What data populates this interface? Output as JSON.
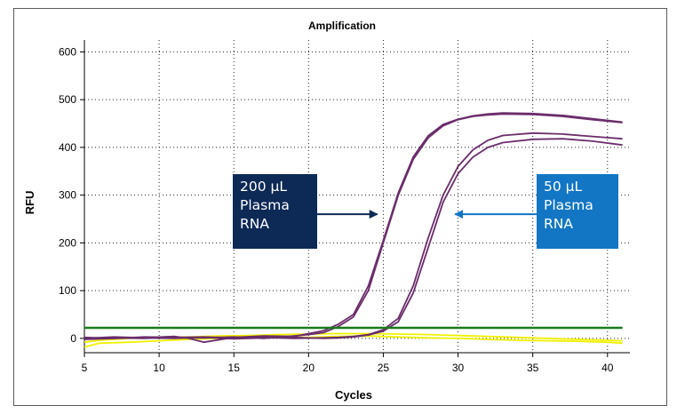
{
  "chart_data": {
    "type": "line",
    "title": "Amplification",
    "xlabel": "Cycles",
    "ylabel": "RFU",
    "xlim": [
      5,
      41.5
    ],
    "ylim": [
      -30,
      625
    ],
    "xticks": [
      5,
      10,
      15,
      20,
      25,
      30,
      35,
      40
    ],
    "yticks": [
      0,
      100,
      200,
      300,
      400,
      500,
      600
    ],
    "grid": true,
    "threshold": {
      "value": 22,
      "color": "#1a7a1a"
    },
    "series": [
      {
        "color": "#6b2d6b",
        "x": [
          5,
          7,
          9,
          11,
          13,
          15,
          17,
          19,
          20,
          21,
          22,
          23,
          24,
          25,
          26,
          27,
          28,
          29,
          30,
          31,
          32,
          33,
          35,
          37,
          39,
          41
        ],
        "y": [
          2,
          0,
          3,
          2,
          1,
          3,
          0,
          5,
          8,
          12,
          25,
          45,
          100,
          200,
          300,
          375,
          420,
          445,
          458,
          465,
          468,
          470,
          469,
          465,
          458,
          452
        ]
      },
      {
        "color": "#6b2d6b",
        "x": [
          5,
          7,
          9,
          11,
          12,
          13,
          15,
          17,
          19,
          20,
          21,
          22,
          23,
          24,
          25,
          26,
          27,
          28,
          29,
          30,
          31,
          32,
          33,
          35,
          37,
          39,
          41
        ],
        "y": [
          0,
          3,
          1,
          4,
          0,
          -8,
          2,
          5,
          4,
          10,
          16,
          30,
          50,
          110,
          205,
          305,
          380,
          424,
          448,
          459,
          466,
          470,
          472,
          471,
          467,
          460,
          453
        ]
      },
      {
        "color": "#6b2d6b",
        "x": [
          5,
          7,
          9,
          11,
          13,
          15,
          17,
          19,
          21,
          22,
          23,
          24,
          25,
          26,
          27,
          28,
          29,
          30,
          31,
          32,
          33,
          35,
          37,
          39,
          41
        ],
        "y": [
          0,
          1,
          0,
          2,
          3,
          1,
          2,
          0,
          1,
          2,
          4,
          8,
          18,
          42,
          110,
          210,
          300,
          360,
          395,
          415,
          425,
          430,
          428,
          423,
          418
        ]
      },
      {
        "color": "#6b2d6b",
        "x": [
          5,
          7,
          9,
          11,
          13,
          15,
          17,
          19,
          21,
          22,
          23,
          24,
          25,
          26,
          27,
          28,
          29,
          30,
          31,
          32,
          33,
          35,
          37,
          39,
          41
        ],
        "y": [
          -2,
          0,
          1,
          0,
          2,
          -1,
          1,
          2,
          0,
          1,
          3,
          7,
          15,
          35,
          95,
          190,
          285,
          345,
          380,
          400,
          410,
          417,
          418,
          413,
          405
        ]
      },
      {
        "color": "#f0f000",
        "x": [
          5,
          6,
          8,
          10,
          12,
          14,
          16,
          18,
          20,
          22,
          24,
          26,
          28,
          30,
          32,
          34,
          36,
          38,
          40,
          41
        ],
        "y": [
          -18,
          -10,
          -8,
          -5,
          -2,
          0,
          2,
          3,
          2,
          4,
          5,
          3,
          1,
          0,
          -2,
          -4,
          -5,
          -6,
          -8,
          -10
        ]
      },
      {
        "color": "#f0f000",
        "x": [
          5,
          6,
          8,
          10,
          12,
          14,
          16,
          18,
          20,
          22,
          24,
          26,
          28,
          30,
          32,
          34,
          36,
          38,
          40,
          41
        ],
        "y": [
          -8,
          -4,
          0,
          2,
          3,
          5,
          6,
          8,
          9,
          10,
          10,
          9,
          8,
          6,
          4,
          2,
          0,
          -2,
          -4,
          -5
        ]
      }
    ],
    "annotations": [
      {
        "lines": [
          "200 µL",
          "Plasma",
          "RNA"
        ],
        "points_to_x": 24.6,
        "points_to_y": 260,
        "box_color": "#0d2a57"
      },
      {
        "lines": [
          "50 µL",
          "Plasma",
          "RNA"
        ],
        "points_to_x": 29.8,
        "points_to_y": 260,
        "box_color": "#1276c4"
      }
    ]
  }
}
